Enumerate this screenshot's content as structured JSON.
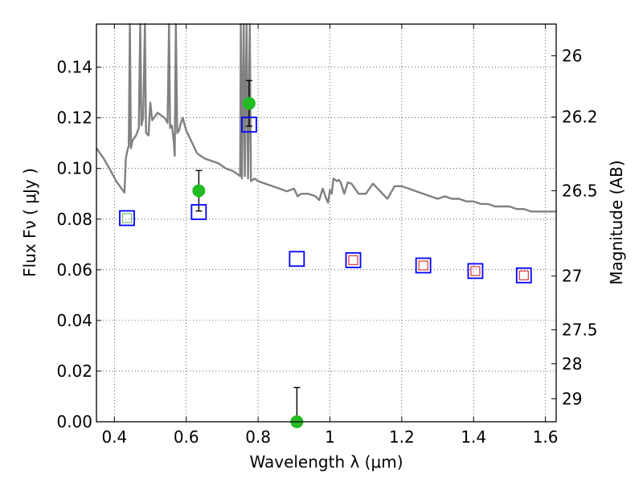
{
  "chart_data": {
    "type": "scatter",
    "xlabel": "Wavelength  λ (μm)",
    "ylabel": "Flux  Fν  ( μJy )",
    "ylabel_right": "Magnitude (AB)",
    "xlim": [
      0.35,
      1.63
    ],
    "ylim": [
      0.0,
      0.157
    ],
    "grid": true,
    "x_ticks": [
      0.4,
      0.6,
      0.8,
      1.0,
      1.2,
      1.4,
      1.6
    ],
    "x_tick_labels": [
      "0.4",
      "0.6",
      "0.8",
      "1",
      "1.2",
      "1.4",
      "1.6"
    ],
    "y_ticks": [
      0.0,
      0.02,
      0.04,
      0.06,
      0.08,
      0.1,
      0.12,
      0.14
    ],
    "y_tick_labels": [
      "0.00",
      "0.02",
      "0.04",
      "0.06",
      "0.08",
      "0.10",
      "0.12",
      "0.14"
    ],
    "right_ticks": [
      {
        "label": "26",
        "flux": 0.1445
      },
      {
        "label": "26.2",
        "flux": 0.1203
      },
      {
        "label": "26.5",
        "flux": 0.0912
      },
      {
        "label": "27",
        "flux": 0.0575
      },
      {
        "label": "27.5",
        "flux": 0.0363
      },
      {
        "label": "28",
        "flux": 0.0229
      },
      {
        "label": "29",
        "flux": 0.0091
      }
    ],
    "series": [
      {
        "type": "line",
        "color": "#808080",
        "points": [
          [
            0.35,
            0.108
          ],
          [
            0.37,
            0.104
          ],
          [
            0.39,
            0.099
          ],
          [
            0.405,
            0.095
          ],
          [
            0.42,
            0.092
          ],
          [
            0.428,
            0.0905
          ],
          [
            0.432,
            0.104
          ],
          [
            0.436,
            0.107
          ],
          [
            0.44,
            0.109
          ],
          [
            0.443,
            0.158
          ],
          [
            0.446,
            0.108
          ],
          [
            0.45,
            0.111
          ],
          [
            0.46,
            0.113
          ],
          [
            0.468,
            0.116
          ],
          [
            0.472,
            0.158
          ],
          [
            0.475,
            0.117
          ],
          [
            0.48,
            0.12
          ],
          [
            0.485,
            0.158
          ],
          [
            0.488,
            0.114
          ],
          [
            0.495,
            0.113
          ],
          [
            0.5,
            0.126
          ],
          [
            0.505,
            0.119
          ],
          [
            0.51,
            0.12
          ],
          [
            0.52,
            0.122
          ],
          [
            0.53,
            0.121
          ],
          [
            0.54,
            0.12
          ],
          [
            0.548,
            0.118
          ],
          [
            0.552,
            0.158
          ],
          [
            0.555,
            0.116
          ],
          [
            0.56,
            0.117
          ],
          [
            0.565,
            0.111
          ],
          [
            0.568,
            0.105
          ],
          [
            0.571,
            0.158
          ],
          [
            0.575,
            0.114
          ],
          [
            0.58,
            0.115
          ],
          [
            0.585,
            0.118
          ],
          [
            0.59,
            0.12
          ],
          [
            0.6,
            0.115
          ],
          [
            0.61,
            0.112
          ],
          [
            0.63,
            0.106
          ],
          [
            0.65,
            0.104
          ],
          [
            0.67,
            0.103
          ],
          [
            0.69,
            0.102
          ],
          [
            0.71,
            0.1
          ],
          [
            0.73,
            0.099
          ],
          [
            0.75,
            0.097
          ],
          [
            0.752,
            0.158
          ],
          [
            0.755,
            0.096
          ],
          [
            0.76,
            0.158
          ],
          [
            0.763,
            0.097
          ],
          [
            0.768,
            0.158
          ],
          [
            0.772,
            0.096
          ],
          [
            0.777,
            0.158
          ],
          [
            0.78,
            0.095
          ],
          [
            0.79,
            0.096
          ],
          [
            0.8,
            0.095
          ],
          [
            0.82,
            0.094
          ],
          [
            0.84,
            0.093
          ],
          [
            0.86,
            0.092
          ],
          [
            0.88,
            0.091
          ],
          [
            0.9,
            0.092
          ],
          [
            0.91,
            0.089
          ],
          [
            0.92,
            0.09
          ],
          [
            0.94,
            0.09
          ],
          [
            0.96,
            0.089
          ],
          [
            0.97,
            0.0875
          ],
          [
            0.98,
            0.092
          ],
          [
            0.985,
            0.09
          ],
          [
            0.99,
            0.088
          ],
          [
            0.995,
            0.0865
          ],
          [
            1.0,
            0.0915
          ],
          [
            1.005,
            0.09
          ],
          [
            1.01,
            0.096
          ],
          [
            1.02,
            0.095
          ],
          [
            1.025,
            0.0955
          ],
          [
            1.03,
            0.0945
          ],
          [
            1.04,
            0.09
          ],
          [
            1.05,
            0.0945
          ],
          [
            1.06,
            0.094
          ],
          [
            1.07,
            0.092
          ],
          [
            1.08,
            0.09
          ],
          [
            1.1,
            0.09
          ],
          [
            1.12,
            0.094
          ],
          [
            1.14,
            0.091
          ],
          [
            1.16,
            0.088
          ],
          [
            1.18,
            0.093
          ],
          [
            1.2,
            0.093
          ],
          [
            1.22,
            0.092
          ],
          [
            1.24,
            0.091
          ],
          [
            1.26,
            0.09
          ],
          [
            1.28,
            0.089
          ],
          [
            1.3,
            0.088
          ],
          [
            1.32,
            0.089
          ],
          [
            1.34,
            0.088
          ],
          [
            1.36,
            0.088
          ],
          [
            1.38,
            0.087
          ],
          [
            1.4,
            0.087
          ],
          [
            1.42,
            0.086
          ],
          [
            1.44,
            0.086
          ],
          [
            1.46,
            0.085
          ],
          [
            1.48,
            0.085
          ],
          [
            1.5,
            0.085
          ],
          [
            1.52,
            0.084
          ],
          [
            1.54,
            0.084
          ],
          [
            1.56,
            0.083
          ],
          [
            1.58,
            0.083
          ],
          [
            1.6,
            0.083
          ],
          [
            1.63,
            0.083
          ]
        ]
      },
      {
        "type": "scatter",
        "marker": "filled-circle",
        "color": "#22bb22",
        "points": [
          {
            "x": 0.635,
            "y": 0.0912,
            "err": 0.008
          },
          {
            "x": 0.775,
            "y": 0.1257,
            "err": 0.009
          },
          {
            "x": 0.908,
            "y": 0.0,
            "err": 0.0135
          }
        ]
      },
      {
        "type": "scatter",
        "marker": "open-square",
        "color": "#0000ff",
        "points": [
          {
            "x": 0.435,
            "y": 0.0804
          },
          {
            "x": 0.635,
            "y": 0.0828
          },
          {
            "x": 0.775,
            "y": 0.1173
          },
          {
            "x": 0.908,
            "y": 0.0643
          },
          {
            "x": 1.065,
            "y": 0.0638
          },
          {
            "x": 1.26,
            "y": 0.0617
          },
          {
            "x": 1.405,
            "y": 0.0595
          },
          {
            "x": 1.54,
            "y": 0.0578
          }
        ]
      },
      {
        "type": "scatter",
        "marker": "small-open-square",
        "color": "#dd2222",
        "points": [
          {
            "x": 1.065,
            "y": 0.0638
          },
          {
            "x": 1.26,
            "y": 0.0617
          },
          {
            "x": 1.405,
            "y": 0.0595
          },
          {
            "x": 1.54,
            "y": 0.0578
          }
        ]
      },
      {
        "type": "scatter",
        "marker": "small-open-square",
        "color": "#66bb66",
        "points": [
          {
            "x": 0.435,
            "y": 0.0804
          }
        ]
      }
    ]
  }
}
